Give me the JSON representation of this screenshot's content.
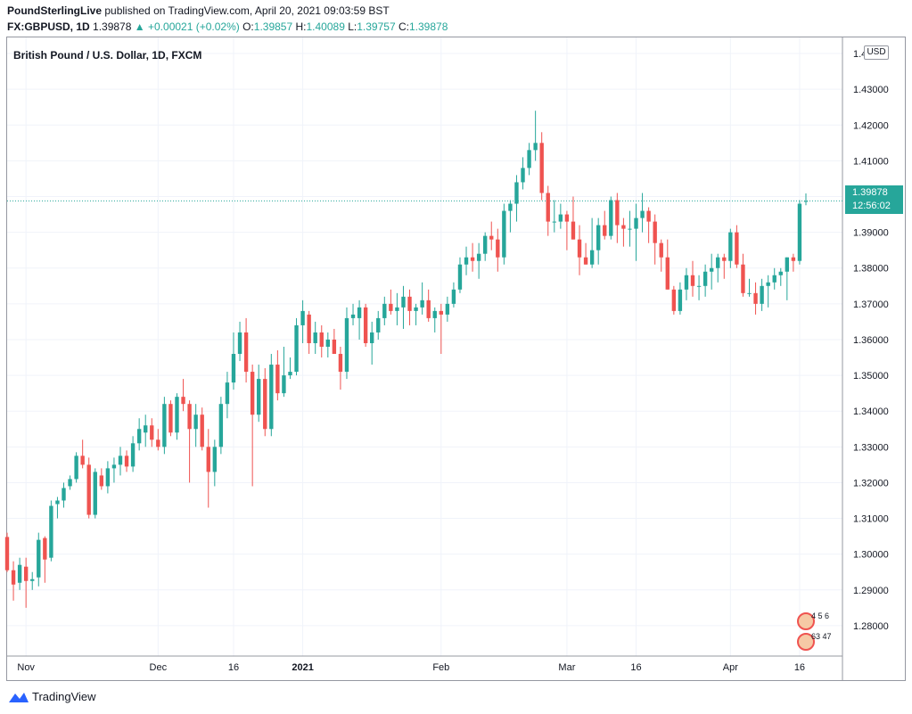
{
  "header": {
    "publisher": "PoundSterlingLive",
    "published_text": "published on TradingView.com, April 20, 2021 09:03:59 BST",
    "symbol": "FX:GBPUSD, 1D",
    "last": "1.39878",
    "change": "+0.00021 (+0.02%)",
    "o_label": "O:",
    "o_value": "1.39857",
    "h_label": "H:",
    "h_value": "1.40089",
    "l_label": "L:",
    "l_value": "1.39757",
    "c_label": "C:",
    "c_value": "1.39878"
  },
  "legend": "British Pound / U.S. Dollar, 1D, FXCM",
  "currency_badge": "USD",
  "price_label": {
    "price": "1.39878",
    "countdown": "12:56:02"
  },
  "brand": "TradingView",
  "flags": {
    "row1": "4 5 6",
    "row2": "63 47"
  },
  "colors": {
    "up": "#26a69a",
    "down": "#ef5350",
    "grid": "#f0f3fa",
    "axis_text": "#131722"
  },
  "chart_data": {
    "type": "candlestick",
    "title": "British Pound / U.S. Dollar, 1D, FXCM",
    "ylim": [
      1.2715,
      1.4445
    ],
    "y_ticks": [
      "1.28000",
      "1.29000",
      "1.30000",
      "1.31000",
      "1.32000",
      "1.33000",
      "1.34000",
      "1.35000",
      "1.36000",
      "1.37000",
      "1.38000",
      "1.39000",
      "1.40000",
      "1.41000",
      "1.42000",
      "1.43000",
      "1.44000"
    ],
    "x_ticks": [
      {
        "label": "Nov",
        "index": 3,
        "bold": false
      },
      {
        "label": "Dec",
        "index": 24,
        "bold": false
      },
      {
        "label": "16",
        "index": 36,
        "bold": false
      },
      {
        "label": "2021",
        "index": 47,
        "bold": true
      },
      {
        "label": "Feb",
        "index": 69,
        "bold": false
      },
      {
        "label": "Mar",
        "index": 89,
        "bold": false
      },
      {
        "label": "16",
        "index": 100,
        "bold": false
      },
      {
        "label": "Apr",
        "index": 115,
        "bold": false
      },
      {
        "label": "16",
        "index": 126,
        "bold": false
      }
    ],
    "last_price": 1.39878,
    "ohlc": [
      [
        1.3048,
        1.306,
        1.295,
        1.2955
      ],
      [
        1.2955,
        1.298,
        1.287,
        1.2915
      ],
      [
        1.292,
        1.299,
        1.29,
        1.297
      ],
      [
        1.2965,
        1.299,
        1.285,
        1.2925
      ],
      [
        1.2925,
        1.295,
        1.29,
        1.293
      ],
      [
        1.2935,
        1.306,
        1.291,
        1.304
      ],
      [
        1.3045,
        1.305,
        1.292,
        1.2985
      ],
      [
        1.299,
        1.315,
        1.298,
        1.3135
      ],
      [
        1.314,
        1.316,
        1.31,
        1.315
      ],
      [
        1.315,
        1.32,
        1.313,
        1.3185
      ],
      [
        1.319,
        1.322,
        1.318,
        1.321
      ],
      [
        1.321,
        1.3285,
        1.32,
        1.3275
      ],
      [
        1.3275,
        1.332,
        1.324,
        1.325
      ],
      [
        1.325,
        1.327,
        1.31,
        1.311
      ],
      [
        1.311,
        1.324,
        1.31,
        1.323
      ],
      [
        1.322,
        1.324,
        1.318,
        1.319
      ],
      [
        1.319,
        1.326,
        1.317,
        1.324
      ],
      [
        1.324,
        1.327,
        1.32,
        1.325
      ],
      [
        1.325,
        1.33,
        1.322,
        1.3275
      ],
      [
        1.3275,
        1.329,
        1.323,
        1.3245
      ],
      [
        1.3245,
        1.333,
        1.323,
        1.331
      ],
      [
        1.331,
        1.338,
        1.329,
        1.335
      ],
      [
        1.334,
        1.339,
        1.33,
        1.336
      ],
      [
        1.336,
        1.338,
        1.33,
        1.332
      ],
      [
        1.332,
        1.335,
        1.329,
        1.33
      ],
      [
        1.33,
        1.344,
        1.328,
        1.342
      ],
      [
        1.342,
        1.343,
        1.333,
        1.334
      ],
      [
        1.334,
        1.345,
        1.332,
        1.344
      ],
      [
        1.344,
        1.349,
        1.34,
        1.342
      ],
      [
        1.342,
        1.343,
        1.32,
        1.335
      ],
      [
        1.335,
        1.342,
        1.33,
        1.339
      ],
      [
        1.339,
        1.341,
        1.329,
        1.33
      ],
      [
        1.33,
        1.335,
        1.313,
        1.323
      ],
      [
        1.323,
        1.332,
        1.319,
        1.33
      ],
      [
        1.33,
        1.344,
        1.328,
        1.342
      ],
      [
        1.342,
        1.351,
        1.338,
        1.348
      ],
      [
        1.348,
        1.362,
        1.346,
        1.356
      ],
      [
        1.356,
        1.365,
        1.354,
        1.362
      ],
      [
        1.362,
        1.366,
        1.348,
        1.351
      ],
      [
        1.351,
        1.353,
        1.319,
        1.339
      ],
      [
        1.339,
        1.353,
        1.337,
        1.349
      ],
      [
        1.349,
        1.352,
        1.333,
        1.335
      ],
      [
        1.335,
        1.356,
        1.333,
        1.353
      ],
      [
        1.353,
        1.357,
        1.343,
        1.345
      ],
      [
        1.345,
        1.358,
        1.344,
        1.35
      ],
      [
        1.35,
        1.355,
        1.349,
        1.351
      ],
      [
        1.351,
        1.366,
        1.35,
        1.364
      ],
      [
        1.364,
        1.371,
        1.359,
        1.368
      ],
      [
        1.367,
        1.368,
        1.356,
        1.359
      ],
      [
        1.359,
        1.365,
        1.356,
        1.362
      ],
      [
        1.362,
        1.364,
        1.355,
        1.358
      ],
      [
        1.358,
        1.362,
        1.355,
        1.36
      ],
      [
        1.36,
        1.363,
        1.356,
        1.356
      ],
      [
        1.356,
        1.358,
        1.346,
        1.351
      ],
      [
        1.351,
        1.369,
        1.349,
        1.366
      ],
      [
        1.366,
        1.37,
        1.364,
        1.367
      ],
      [
        1.366,
        1.371,
        1.36,
        1.369
      ],
      [
        1.369,
        1.37,
        1.358,
        1.359
      ],
      [
        1.359,
        1.365,
        1.353,
        1.362
      ],
      [
        1.362,
        1.368,
        1.36,
        1.366
      ],
      [
        1.366,
        1.372,
        1.364,
        1.37
      ],
      [
        1.37,
        1.374,
        1.367,
        1.368
      ],
      [
        1.368,
        1.373,
        1.364,
        1.369
      ],
      [
        1.369,
        1.375,
        1.363,
        1.372
      ],
      [
        1.372,
        1.374,
        1.364,
        1.368
      ],
      [
        1.368,
        1.37,
        1.364,
        1.369
      ],
      [
        1.369,
        1.376,
        1.367,
        1.371
      ],
      [
        1.371,
        1.374,
        1.365,
        1.366
      ],
      [
        1.366,
        1.369,
        1.362,
        1.368
      ],
      [
        1.368,
        1.37,
        1.356,
        1.367
      ],
      [
        1.367,
        1.372,
        1.365,
        1.37
      ],
      [
        1.37,
        1.376,
        1.369,
        1.374
      ],
      [
        1.374,
        1.383,
        1.373,
        1.381
      ],
      [
        1.381,
        1.386,
        1.378,
        1.383
      ],
      [
        1.383,
        1.387,
        1.379,
        1.382
      ],
      [
        1.382,
        1.387,
        1.377,
        1.384
      ],
      [
        1.384,
        1.39,
        1.382,
        1.389
      ],
      [
        1.389,
        1.393,
        1.385,
        1.388
      ],
      [
        1.388,
        1.391,
        1.379,
        1.383
      ],
      [
        1.383,
        1.398,
        1.381,
        1.396
      ],
      [
        1.396,
        1.399,
        1.39,
        1.398
      ],
      [
        1.398,
        1.406,
        1.393,
        1.404
      ],
      [
        1.404,
        1.411,
        1.402,
        1.408
      ],
      [
        1.408,
        1.415,
        1.406,
        1.413
      ],
      [
        1.413,
        1.424,
        1.41,
        1.415
      ],
      [
        1.415,
        1.418,
        1.399,
        1.401
      ],
      [
        1.401,
        1.403,
        1.389,
        1.393
      ],
      [
        1.393,
        1.399,
        1.39,
        1.393
      ],
      [
        1.393,
        1.398,
        1.391,
        1.395
      ],
      [
        1.395,
        1.396,
        1.385,
        1.393
      ],
      [
        1.393,
        1.4,
        1.388,
        1.388
      ],
      [
        1.388,
        1.392,
        1.378,
        1.383
      ],
      [
        1.383,
        1.387,
        1.381,
        1.381
      ],
      [
        1.381,
        1.394,
        1.38,
        1.385
      ],
      [
        1.385,
        1.394,
        1.381,
        1.392
      ],
      [
        1.392,
        1.396,
        1.388,
        1.389
      ],
      [
        1.389,
        1.4,
        1.388,
        1.399
      ],
      [
        1.399,
        1.401,
        1.387,
        1.392
      ],
      [
        1.392,
        1.394,
        1.386,
        1.391
      ],
      [
        1.391,
        1.396,
        1.386,
        1.391
      ],
      [
        1.391,
        1.398,
        1.382,
        1.394
      ],
      [
        1.394,
        1.401,
        1.39,
        1.396
      ],
      [
        1.396,
        1.397,
        1.387,
        1.393
      ],
      [
        1.393,
        1.395,
        1.381,
        1.387
      ],
      [
        1.387,
        1.388,
        1.379,
        1.383
      ],
      [
        1.383,
        1.388,
        1.374,
        1.374
      ],
      [
        1.374,
        1.375,
        1.367,
        1.368
      ],
      [
        1.368,
        1.376,
        1.367,
        1.374
      ],
      [
        1.374,
        1.38,
        1.371,
        1.378
      ],
      [
        1.378,
        1.382,
        1.372,
        1.375
      ],
      [
        1.375,
        1.378,
        1.371,
        1.375
      ],
      [
        1.375,
        1.381,
        1.372,
        1.379
      ],
      [
        1.379,
        1.384,
        1.374,
        1.38
      ],
      [
        1.38,
        1.384,
        1.376,
        1.383
      ],
      [
        1.383,
        1.384,
        1.377,
        1.382
      ],
      [
        1.382,
        1.391,
        1.38,
        1.39
      ],
      [
        1.39,
        1.392,
        1.38,
        1.381
      ],
      [
        1.381,
        1.384,
        1.372,
        1.373
      ],
      [
        1.373,
        1.377,
        1.372,
        1.373
      ],
      [
        1.373,
        1.376,
        1.367,
        1.37
      ],
      [
        1.37,
        1.377,
        1.368,
        1.375
      ],
      [
        1.375,
        1.378,
        1.369,
        1.376
      ],
      [
        1.376,
        1.38,
        1.374,
        1.378
      ],
      [
        1.378,
        1.38,
        1.375,
        1.379
      ],
      [
        1.379,
        1.383,
        1.371,
        1.383
      ],
      [
        1.383,
        1.384,
        1.379,
        1.382
      ],
      [
        1.382,
        1.399,
        1.381,
        1.398
      ],
      [
        1.39857,
        1.40089,
        1.39757,
        1.39878
      ]
    ]
  }
}
